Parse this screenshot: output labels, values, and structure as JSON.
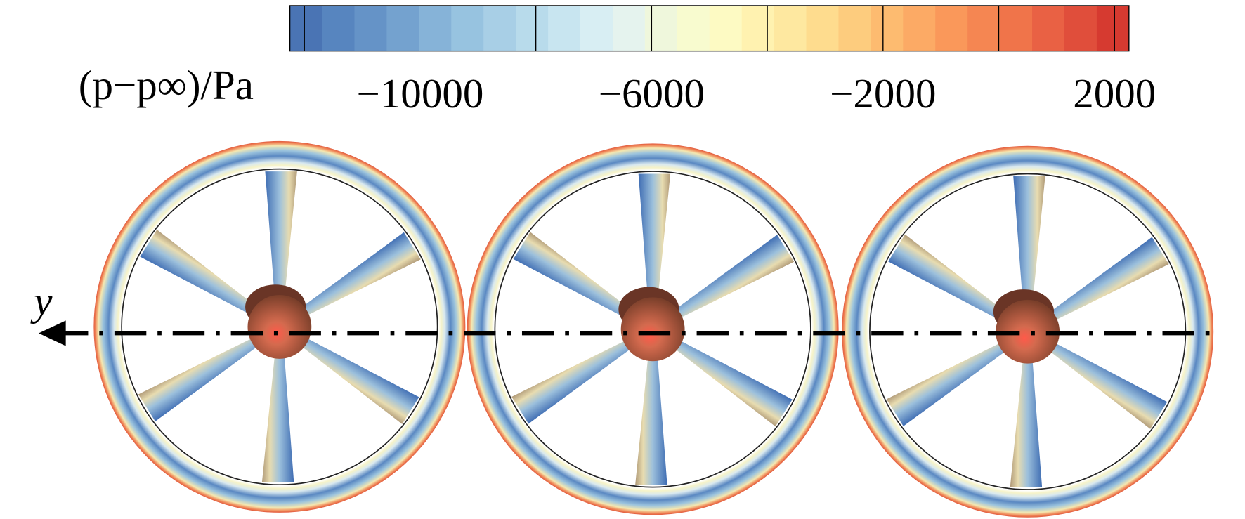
{
  "colorbar": {
    "label": "(p−p∞)/Pa",
    "lim": [
      -12250,
      2250
    ],
    "ticks": [
      {
        "value": -10000,
        "label": "−10000"
      },
      {
        "value": -6000,
        "label": "−6000"
      },
      {
        "value": -2000,
        "label": "−2000"
      },
      {
        "value": 2000,
        "label": "2000"
      }
    ],
    "separators": [
      -12000,
      -8000,
      -6000,
      -4000,
      -2000,
      0,
      2000
    ],
    "colors": [
      "#4a74b4",
      "#5785bf",
      "#6593c7",
      "#74a2cf",
      "#86b3d8",
      "#97c3e0",
      "#a8cfe6",
      "#b8dbeb",
      "#c8e5f0",
      "#d8eef3",
      "#e5f3ee",
      "#eff7dc",
      "#f8fbcf",
      "#fdfac3",
      "#fff2b0",
      "#fee8a0",
      "#fedc8e",
      "#fdcc7e",
      "#fdbb70",
      "#fcaa65",
      "#fa985a",
      "#f58652",
      "#f0744a",
      "#e96144",
      "#e04e3b",
      "#d63a30"
    ]
  },
  "axis_label": "y"
}
